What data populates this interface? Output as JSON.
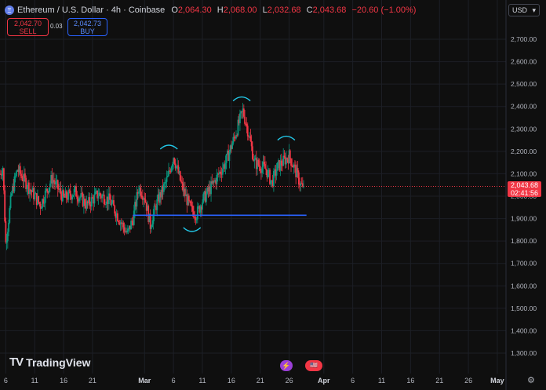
{
  "header": {
    "symbol": "Ethereum / U.S. Dollar · 4h · Coinbase",
    "open_label": "O",
    "open": "2,064.30",
    "high_label": "H",
    "high": "2,068.00",
    "low_label": "L",
    "low": "2,032.68",
    "close_label": "C",
    "close": "2,043.68",
    "change": "−20.60 (−1.00%)",
    "eth_icon": "Ξ"
  },
  "trade": {
    "sell_price": "2,042.70",
    "sell_label": "SELL",
    "buy_price": "2,042.73",
    "buy_label": "BUY",
    "spread": "0.03"
  },
  "currency": {
    "label": "USD",
    "icon": "▾"
  },
  "last_price": {
    "price": "2,043.68",
    "countdown": "02:41:56"
  },
  "logo": {
    "mark": "TV",
    "text": "TradingView"
  },
  "events": {
    "e1": "⚡",
    "e2": "🇺🇸"
  },
  "settings_icon": "⚙",
  "colors": {
    "up": "#089981",
    "down": "#f23645",
    "support": "#2962ff",
    "annotation": "#22c8e8",
    "background": "#0f0f0f"
  },
  "chart_data": {
    "type": "candlestick",
    "title": "Ethereum / U.S. Dollar · 4h · Coinbase",
    "ylim": [
      1250,
      2900
    ],
    "y_ticks": [
      1300,
      1400,
      1500,
      1600,
      1700,
      1800,
      1900,
      2000,
      2100,
      2200,
      2300,
      2400,
      2500,
      2600,
      2700
    ],
    "y_tick_labels": [
      "1,300.00",
      "1,400.00",
      "1,500.00",
      "1,600.00",
      "1,700.00",
      "1,800.00",
      "1,900.00",
      "2,000.00",
      "2,100.00",
      "2,200.00",
      "2,300.00",
      "2,400.00",
      "2,500.00",
      "2,600.00",
      "2,700.00"
    ],
    "x_labels": [
      "6",
      "11",
      "16",
      "21",
      "Mar",
      "6",
      "11",
      "16",
      "21",
      "26",
      "Apr",
      "6",
      "11",
      "16",
      "21",
      "26",
      "May"
    ],
    "x_label_days": [
      -24,
      -19,
      -14,
      -9,
      0,
      5,
      10,
      15,
      20,
      25,
      31,
      36,
      41,
      46,
      51,
      56,
      61
    ],
    "x_label_bold": [
      "Mar",
      "Apr",
      "May"
    ],
    "x_domain_days": [
      -25,
      62.5
    ],
    "x_axis_note": "day offset from 1 Mar",
    "last_price": 2043.68,
    "support_line": {
      "price": 1915,
      "from_day": -2,
      "to_day": 28
    },
    "anchors": [
      {
        "day": -25.0,
        "price": 2100
      },
      {
        "day": -24.5,
        "price": 2130
      },
      {
        "day": -24.0,
        "price": 1790
      },
      {
        "day": -23.0,
        "price": 2010
      },
      {
        "day": -22.0,
        "price": 2120
      },
      {
        "day": -20.0,
        "price": 2040
      },
      {
        "day": -18.0,
        "price": 1960
      },
      {
        "day": -16.0,
        "price": 2080
      },
      {
        "day": -14.0,
        "price": 1990
      },
      {
        "day": -12.0,
        "price": 2020
      },
      {
        "day": -10.0,
        "price": 1960
      },
      {
        "day": -8.0,
        "price": 2010
      },
      {
        "day": -6.0,
        "price": 1980
      },
      {
        "day": -4.0,
        "price": 1880
      },
      {
        "day": -3.0,
        "price": 1830
      },
      {
        "day": -2.0,
        "price": 1900
      },
      {
        "day": -1.0,
        "price": 2040
      },
      {
        "day": 0.0,
        "price": 2000
      },
      {
        "day": 1.0,
        "price": 1870
      },
      {
        "day": 2.0,
        "price": 1960
      },
      {
        "day": 4.0,
        "price": 2080
      },
      {
        "day": 5.0,
        "price": 2180
      },
      {
        "day": 6.5,
        "price": 2040
      },
      {
        "day": 8.0,
        "price": 1940
      },
      {
        "day": 9.0,
        "price": 1920
      },
      {
        "day": 10.0,
        "price": 1980
      },
      {
        "day": 12.0,
        "price": 2060
      },
      {
        "day": 14.0,
        "price": 2150
      },
      {
        "day": 15.5,
        "price": 2260
      },
      {
        "day": 17.0,
        "price": 2380
      },
      {
        "day": 18.0,
        "price": 2280
      },
      {
        "day": 19.0,
        "price": 2150
      },
      {
        "day": 21.0,
        "price": 2120
      },
      {
        "day": 22.0,
        "price": 2060
      },
      {
        "day": 23.0,
        "price": 2130
      },
      {
        "day": 25.0,
        "price": 2180
      },
      {
        "day": 26.0,
        "price": 2120
      },
      {
        "day": 27.0,
        "price": 2050
      },
      {
        "day": 27.5,
        "price": 2044
      }
    ],
    "annotations": [
      {
        "kind": "arc",
        "center_day": 4.2,
        "center_price": 2210,
        "direction": "up"
      },
      {
        "kind": "arc",
        "center_day": 16.8,
        "center_price": 2425,
        "direction": "up"
      },
      {
        "kind": "arc",
        "center_day": 24.5,
        "center_price": 2250,
        "direction": "up"
      },
      {
        "kind": "arc",
        "center_day": 8.2,
        "center_price": 1860,
        "direction": "down"
      }
    ]
  }
}
